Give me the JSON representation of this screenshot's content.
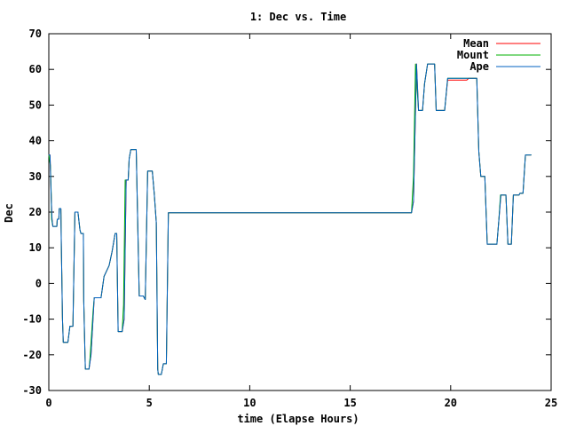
{
  "chart_data": {
    "type": "line",
    "title": "1: Dec vs. Time",
    "xlabel": "time (Elapse Hours)",
    "ylabel": "Dec",
    "xlim": [
      0,
      25
    ],
    "ylim": [
      -30,
      70
    ],
    "xticks": [
      0,
      5,
      10,
      15,
      20,
      25
    ],
    "yticks": [
      -30,
      -20,
      -10,
      0,
      10,
      20,
      30,
      40,
      50,
      60,
      70
    ],
    "xtick_labels": [
      "0",
      "5",
      "10",
      "15",
      "20",
      "25"
    ],
    "ytick_labels": [
      "-30",
      "-20",
      "-10",
      "0",
      "10",
      "20",
      "30",
      "40",
      "50",
      "60",
      "70"
    ],
    "grid": false,
    "legend": {
      "position": "top-right",
      "entries": [
        "Mean",
        "Mount",
        "Ape"
      ]
    },
    "series": [
      {
        "name": "Mean",
        "color": "#ff0000",
        "points": [
          [
            0.0,
            36
          ],
          [
            0.06,
            36
          ],
          [
            0.08,
            32
          ],
          [
            0.1,
            28
          ],
          [
            0.12,
            24
          ],
          [
            0.16,
            18
          ],
          [
            0.2,
            16
          ],
          [
            0.4,
            16
          ],
          [
            0.42,
            18
          ],
          [
            0.5,
            18
          ],
          [
            0.52,
            21
          ],
          [
            0.6,
            21
          ],
          [
            0.62,
            12
          ],
          [
            0.68,
            -10
          ],
          [
            0.72,
            -16.5
          ],
          [
            0.95,
            -16.5
          ],
          [
            1.05,
            -12
          ],
          [
            1.2,
            -12
          ],
          [
            1.3,
            20
          ],
          [
            1.45,
            20
          ],
          [
            1.55,
            15
          ],
          [
            1.6,
            14
          ],
          [
            1.72,
            14
          ],
          [
            1.74,
            -5
          ],
          [
            1.8,
            -20
          ],
          [
            1.82,
            -24
          ],
          [
            2.0,
            -24
          ],
          [
            2.1,
            -20
          ],
          [
            2.2,
            -10
          ],
          [
            2.26,
            -4
          ],
          [
            2.6,
            -4
          ],
          [
            2.75,
            2
          ],
          [
            3.0,
            5
          ],
          [
            3.15,
            9
          ],
          [
            3.3,
            14
          ],
          [
            3.38,
            14
          ],
          [
            3.45,
            -13.5
          ],
          [
            3.65,
            -13.5
          ],
          [
            3.75,
            -10
          ],
          [
            3.85,
            29
          ],
          [
            3.95,
            29
          ],
          [
            4.0,
            35
          ],
          [
            4.08,
            37.5
          ],
          [
            4.35,
            37.5
          ],
          [
            4.5,
            -3.5
          ],
          [
            4.7,
            -3.5
          ],
          [
            4.8,
            -4.5
          ],
          [
            4.92,
            31.5
          ],
          [
            5.15,
            31.5
          ],
          [
            5.25,
            25
          ],
          [
            5.35,
            17
          ],
          [
            5.42,
            -24
          ],
          [
            5.45,
            -25.5
          ],
          [
            5.6,
            -25.5
          ],
          [
            5.7,
            -22.5
          ],
          [
            5.85,
            -22.5
          ],
          [
            5.95,
            19.8
          ],
          [
            18.05,
            19.8
          ],
          [
            18.15,
            23
          ],
          [
            18.3,
            61.5
          ],
          [
            18.4,
            48.5
          ],
          [
            18.6,
            48.5
          ],
          [
            18.7,
            56
          ],
          [
            18.85,
            61.5
          ],
          [
            19.2,
            61.5
          ],
          [
            19.28,
            48.5
          ],
          [
            19.7,
            48.5
          ],
          [
            19.85,
            57
          ],
          [
            20.8,
            57
          ],
          [
            20.9,
            57.5
          ],
          [
            21.3,
            57.5
          ],
          [
            21.4,
            37
          ],
          [
            21.5,
            30
          ],
          [
            21.7,
            30
          ],
          [
            21.82,
            11
          ],
          [
            22.3,
            11
          ],
          [
            22.5,
            24.8
          ],
          [
            22.75,
            24.8
          ],
          [
            22.85,
            11
          ],
          [
            23.02,
            11
          ],
          [
            23.12,
            24.8
          ],
          [
            23.4,
            24.8
          ],
          [
            23.45,
            25.3
          ],
          [
            23.6,
            25.3
          ],
          [
            23.72,
            36
          ],
          [
            24.0,
            36
          ]
        ]
      },
      {
        "name": "Mount",
        "color": "#00b000",
        "points": [
          [
            0.0,
            36
          ],
          [
            0.08,
            33
          ],
          [
            0.12,
            25
          ],
          [
            0.14,
            18
          ],
          [
            0.2,
            16
          ],
          [
            0.4,
            16
          ],
          [
            0.42,
            18
          ],
          [
            0.5,
            18
          ],
          [
            0.52,
            21
          ],
          [
            0.6,
            21
          ],
          [
            0.62,
            12
          ],
          [
            0.68,
            -10
          ],
          [
            0.72,
            -16.5
          ],
          [
            0.95,
            -16.5
          ],
          [
            1.05,
            -12
          ],
          [
            1.2,
            -12
          ],
          [
            1.3,
            20
          ],
          [
            1.45,
            20
          ],
          [
            1.55,
            15
          ],
          [
            1.6,
            14
          ],
          [
            1.72,
            14
          ],
          [
            1.74,
            -5
          ],
          [
            1.8,
            -20
          ],
          [
            1.82,
            -24
          ],
          [
            2.0,
            -24
          ],
          [
            2.05,
            -21
          ],
          [
            2.2,
            -8
          ],
          [
            2.26,
            -4
          ],
          [
            2.6,
            -4
          ],
          [
            2.75,
            2
          ],
          [
            3.0,
            5
          ],
          [
            3.15,
            9
          ],
          [
            3.3,
            14
          ],
          [
            3.38,
            14
          ],
          [
            3.45,
            -13.5
          ],
          [
            3.65,
            -13.5
          ],
          [
            3.72,
            -6
          ],
          [
            3.8,
            29
          ],
          [
            3.95,
            29
          ],
          [
            4.0,
            35
          ],
          [
            4.08,
            37.5
          ],
          [
            4.35,
            37.5
          ],
          [
            4.5,
            -3.5
          ],
          [
            4.7,
            -3.5
          ],
          [
            4.8,
            -4.5
          ],
          [
            4.92,
            31.5
          ],
          [
            5.15,
            31.5
          ],
          [
            5.25,
            25
          ],
          [
            5.35,
            17
          ],
          [
            5.42,
            -24
          ],
          [
            5.45,
            -25.5
          ],
          [
            5.6,
            -25.5
          ],
          [
            5.7,
            -22.5
          ],
          [
            5.85,
            -22.5
          ],
          [
            5.95,
            19.8
          ],
          [
            18.05,
            19.8
          ],
          [
            18.15,
            30
          ],
          [
            18.25,
            61.5
          ],
          [
            18.4,
            48.5
          ],
          [
            18.6,
            48.5
          ],
          [
            18.7,
            56
          ],
          [
            18.85,
            61.5
          ],
          [
            19.2,
            61.5
          ],
          [
            19.28,
            48.5
          ],
          [
            19.7,
            48.5
          ],
          [
            19.85,
            57.5
          ],
          [
            20.8,
            57.5
          ],
          [
            20.9,
            57.5
          ],
          [
            21.3,
            57.5
          ],
          [
            21.4,
            37
          ],
          [
            21.5,
            30
          ],
          [
            21.7,
            30
          ],
          [
            21.82,
            11
          ],
          [
            22.3,
            11
          ],
          [
            22.4,
            18
          ],
          [
            22.48,
            24.8
          ],
          [
            22.75,
            24.8
          ],
          [
            22.85,
            11
          ],
          [
            23.02,
            11
          ],
          [
            23.12,
            24.8
          ],
          [
            23.4,
            24.8
          ],
          [
            23.45,
            25.3
          ],
          [
            23.6,
            25.3
          ],
          [
            23.72,
            36
          ],
          [
            24.0,
            36
          ]
        ]
      },
      {
        "name": "Ape",
        "color": "#0060c0",
        "points": [
          [
            0.0,
            36
          ],
          [
            0.06,
            36
          ],
          [
            0.08,
            32
          ],
          [
            0.1,
            28
          ],
          [
            0.12,
            24
          ],
          [
            0.16,
            18
          ],
          [
            0.2,
            16
          ],
          [
            0.4,
            16
          ],
          [
            0.42,
            18
          ],
          [
            0.5,
            18
          ],
          [
            0.52,
            21
          ],
          [
            0.6,
            21
          ],
          [
            0.62,
            12
          ],
          [
            0.68,
            -10
          ],
          [
            0.72,
            -16.5
          ],
          [
            0.95,
            -16.5
          ],
          [
            1.05,
            -12
          ],
          [
            1.2,
            -12
          ],
          [
            1.3,
            20
          ],
          [
            1.45,
            20
          ],
          [
            1.55,
            15
          ],
          [
            1.6,
            14
          ],
          [
            1.72,
            14
          ],
          [
            1.74,
            -5
          ],
          [
            1.8,
            -20
          ],
          [
            1.82,
            -24
          ],
          [
            2.0,
            -24
          ],
          [
            2.1,
            -20
          ],
          [
            2.2,
            -10
          ],
          [
            2.26,
            -4
          ],
          [
            2.6,
            -4
          ],
          [
            2.75,
            2
          ],
          [
            3.0,
            5
          ],
          [
            3.15,
            9
          ],
          [
            3.3,
            14
          ],
          [
            3.38,
            14
          ],
          [
            3.45,
            -13.5
          ],
          [
            3.65,
            -13.5
          ],
          [
            3.75,
            -10
          ],
          [
            3.85,
            29
          ],
          [
            3.95,
            29
          ],
          [
            4.0,
            35
          ],
          [
            4.08,
            37.5
          ],
          [
            4.35,
            37.5
          ],
          [
            4.5,
            -3.5
          ],
          [
            4.7,
            -3.5
          ],
          [
            4.8,
            -4.5
          ],
          [
            4.92,
            31.5
          ],
          [
            5.15,
            31.5
          ],
          [
            5.25,
            25
          ],
          [
            5.35,
            17
          ],
          [
            5.42,
            -24
          ],
          [
            5.45,
            -25.5
          ],
          [
            5.6,
            -25.5
          ],
          [
            5.7,
            -22.5
          ],
          [
            5.85,
            -22.5
          ],
          [
            5.95,
            19.8
          ],
          [
            18.05,
            19.8
          ],
          [
            18.15,
            23
          ],
          [
            18.3,
            61.5
          ],
          [
            18.4,
            48.5
          ],
          [
            18.6,
            48.5
          ],
          [
            18.7,
            56
          ],
          [
            18.85,
            61.5
          ],
          [
            19.2,
            61.5
          ],
          [
            19.28,
            48.5
          ],
          [
            19.7,
            48.5
          ],
          [
            19.85,
            57.5
          ],
          [
            20.8,
            57.5
          ],
          [
            20.9,
            57.5
          ],
          [
            21.3,
            57.5
          ],
          [
            21.4,
            37
          ],
          [
            21.5,
            30
          ],
          [
            21.7,
            30
          ],
          [
            21.82,
            11
          ],
          [
            22.3,
            11
          ],
          [
            22.5,
            24.8
          ],
          [
            22.75,
            24.8
          ],
          [
            22.85,
            11
          ],
          [
            23.02,
            11
          ],
          [
            23.12,
            24.8
          ],
          [
            23.4,
            24.8
          ],
          [
            23.45,
            25.3
          ],
          [
            23.6,
            25.3
          ],
          [
            23.72,
            36
          ],
          [
            24.0,
            36
          ]
        ]
      }
    ]
  }
}
